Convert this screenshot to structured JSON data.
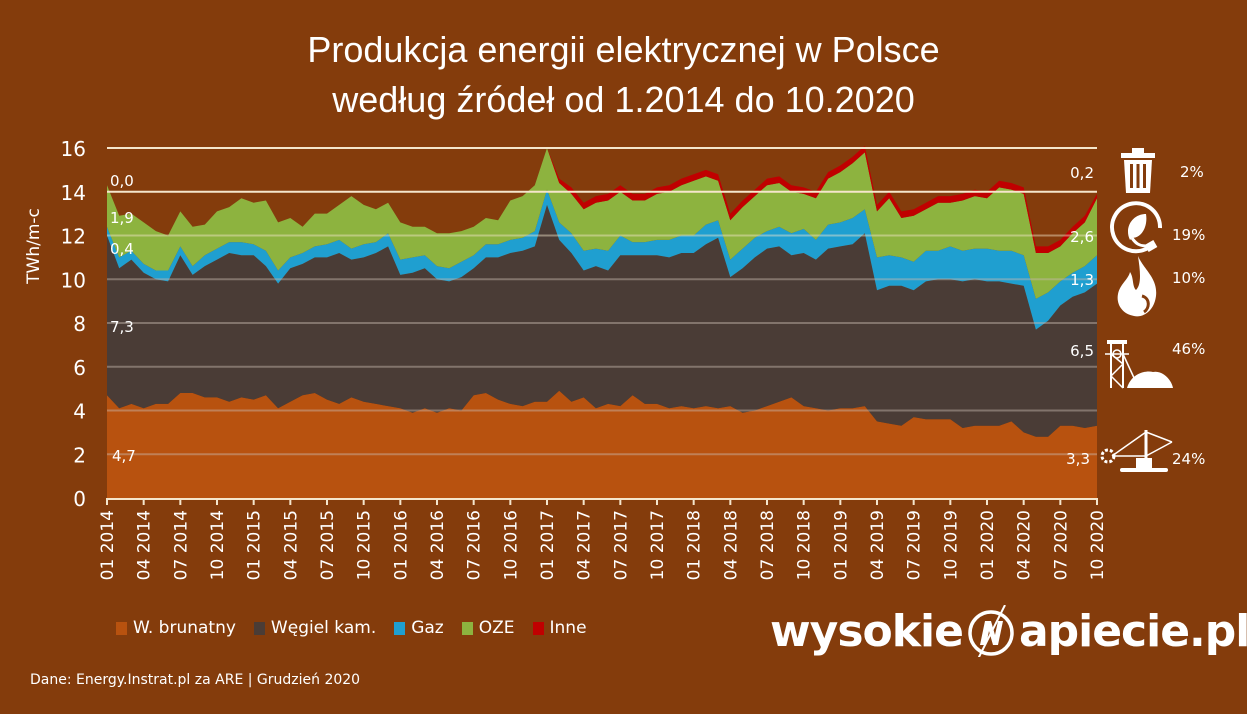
{
  "title": {
    "line1": "Produkcja energii elektrycznej w Polsce",
    "line2": "według źródeł od 1.2014 do 10.2020"
  },
  "axis": {
    "ylabel": "TWh/m-c",
    "yticks": [
      "0",
      "2",
      "4",
      "6",
      "8",
      "10",
      "12",
      "14",
      "16"
    ],
    "xticks": [
      "01 2014",
      "04 2014",
      "07 2014",
      "10 2014",
      "01 2015",
      "04 2015",
      "07 2015",
      "10 2015",
      "01 2016",
      "04 2016",
      "07 2016",
      "10 2016",
      "01 2017",
      "04 2017",
      "07 2017",
      "10 2017",
      "01 2018",
      "04 2018",
      "07 2018",
      "10 2018",
      "01 2019",
      "04 2019",
      "07 2019",
      "10 2019",
      "01 2020",
      "04 2020",
      "07 2020",
      "10 2020"
    ]
  },
  "annotations": {
    "start": {
      "inne": "0,0",
      "oze": "1,9",
      "gaz": "0,4",
      "wegiel": "7,3",
      "brunatny": "4,7"
    },
    "end": {
      "inne": "0,2",
      "oze": "2,6",
      "gaz": "1,3",
      "wegiel": "6,5",
      "brunatny": "3,3"
    }
  },
  "shares": [
    {
      "icon": "trash-icon",
      "label": "2%"
    },
    {
      "icon": "leaf-plug-icon",
      "label": "19%"
    },
    {
      "icon": "flame-icon",
      "label": "10%"
    },
    {
      "icon": "mine-tower-icon",
      "label": "46%"
    },
    {
      "icon": "excavator-icon",
      "label": "24%"
    }
  ],
  "legend": [
    {
      "label": "W. brunatny",
      "color": "#b8520f"
    },
    {
      "label": "Węgiel kam.",
      "color": "#4a3c36"
    },
    {
      "label": "Gaz",
      "color": "#1f9fd0"
    },
    {
      "label": "OZE",
      "color": "#8db33f"
    },
    {
      "label": "Inne",
      "color": "#c00000"
    }
  ],
  "source": "Dane: Energy.Instrat.pl za ARE  |  Grudzień 2020",
  "logo": {
    "left": "wysokie",
    "right": "apiecie.pl"
  },
  "colors": {
    "background": "#843c0c",
    "brunatny": "#b8520f",
    "wegiel": "#4a3c36",
    "gaz": "#1f9fd0",
    "oze": "#8db33f",
    "inne": "#c00000",
    "grid_light": "#f5e6cc"
  },
  "chart_data": {
    "type": "area",
    "stacked": true,
    "title": "Produkcja energii elektrycznej w Polsce według źródeł od 1.2014 do 10.2020",
    "xlabel": "",
    "ylabel": "TWh/m-c",
    "ylim": [
      0,
      16
    ],
    "grid": true,
    "legend_position": "bottom",
    "x_start": "01 2014",
    "x_end": "10 2020",
    "x_count": 82,
    "series": [
      {
        "name": "W. brunatny",
        "values": [
          4.7,
          4.1,
          4.3,
          4.1,
          4.3,
          4.3,
          4.8,
          4.8,
          4.6,
          4.6,
          4.4,
          4.6,
          4.5,
          4.7,
          4.1,
          4.4,
          4.7,
          4.8,
          4.5,
          4.3,
          4.6,
          4.4,
          4.3,
          4.2,
          4.1,
          3.9,
          4.1,
          3.9,
          4.1,
          4.0,
          4.7,
          4.8,
          4.5,
          4.3,
          4.2,
          4.4,
          4.4,
          4.9,
          4.4,
          4.6,
          4.1,
          4.3,
          4.2,
          4.7,
          4.3,
          4.3,
          4.1,
          4.2,
          4.1,
          4.2,
          4.1,
          4.2,
          3.9,
          4.0,
          4.2,
          4.4,
          4.6,
          4.2,
          4.1,
          4.0,
          4.1,
          4.1,
          4.2,
          3.5,
          3.4,
          3.3,
          3.7,
          3.6,
          3.6,
          3.6,
          3.2,
          3.3,
          3.3,
          3.3,
          3.5,
          3.0,
          2.8,
          2.8,
          3.3,
          3.3,
          3.2,
          3.3
        ]
      },
      {
        "name": "Węgiel kam.",
        "values": [
          7.3,
          6.4,
          6.6,
          6.2,
          5.7,
          5.6,
          6.3,
          5.4,
          6.0,
          6.3,
          6.8,
          6.5,
          6.6,
          5.9,
          5.7,
          6.1,
          6.0,
          6.2,
          6.5,
          6.9,
          6.3,
          6.6,
          6.9,
          7.3,
          6.1,
          6.4,
          6.4,
          6.1,
          5.8,
          6.1,
          5.8,
          6.2,
          6.5,
          6.9,
          7.1,
          7.1,
          9.0,
          6.9,
          6.8,
          5.8,
          6.5,
          6.1,
          6.9,
          6.4,
          6.8,
          6.8,
          6.9,
          7.0,
          7.1,
          7.4,
          7.8,
          5.9,
          6.6,
          7.0,
          7.2,
          7.1,
          6.5,
          7.0,
          6.8,
          7.4,
          7.4,
          7.5,
          7.9,
          6.0,
          6.3,
          6.4,
          5.8,
          6.3,
          6.4,
          6.4,
          6.7,
          6.7,
          6.6,
          6.6,
          6.3,
          6.7,
          4.9,
          5.3,
          5.5,
          5.9,
          6.2,
          6.5
        ]
      },
      {
        "name": "Gaz",
        "values": [
          0.4,
          0.5,
          0.4,
          0.4,
          0.4,
          0.5,
          0.4,
          0.4,
          0.5,
          0.5,
          0.5,
          0.6,
          0.5,
          0.7,
          0.6,
          0.5,
          0.5,
          0.5,
          0.6,
          0.6,
          0.5,
          0.6,
          0.5,
          0.6,
          0.7,
          0.7,
          0.6,
          0.6,
          0.6,
          0.7,
          0.6,
          0.6,
          0.6,
          0.6,
          0.6,
          0.7,
          0.7,
          0.8,
          0.9,
          0.9,
          0.8,
          0.9,
          0.9,
          0.6,
          0.6,
          0.7,
          0.8,
          0.8,
          0.8,
          0.9,
          0.8,
          0.8,
          0.9,
          0.9,
          0.8,
          0.9,
          1.0,
          1.1,
          0.9,
          1.1,
          1.1,
          1.2,
          1.1,
          1.5,
          1.4,
          1.3,
          1.3,
          1.4,
          1.3,
          1.5,
          1.4,
          1.4,
          1.5,
          1.4,
          1.5,
          1.4,
          1.4,
          1.3,
          1.1,
          1.1,
          1.2,
          1.3
        ]
      },
      {
        "name": "OZE",
        "values": [
          1.9,
          1.9,
          1.7,
          1.9,
          1.8,
          1.6,
          1.6,
          1.8,
          1.4,
          1.7,
          1.6,
          2.0,
          1.9,
          2.3,
          2.2,
          1.8,
          1.2,
          1.5,
          1.4,
          1.6,
          2.4,
          1.8,
          1.5,
          1.4,
          1.7,
          1.4,
          1.3,
          1.5,
          1.6,
          1.4,
          1.3,
          1.2,
          1.1,
          1.8,
          1.9,
          2.1,
          1.9,
          1.8,
          1.8,
          1.9,
          2.1,
          2.3,
          2.0,
          1.9,
          1.9,
          2.1,
          2.2,
          2.3,
          2.5,
          2.2,
          1.8,
          1.8,
          1.9,
          1.9,
          2.1,
          2.0,
          1.9,
          1.6,
          1.9,
          2.1,
          2.3,
          2.5,
          2.6,
          2.1,
          2.6,
          1.8,
          2.1,
          1.9,
          2.2,
          2.0,
          2.3,
          2.4,
          2.3,
          2.9,
          2.8,
          2.8,
          2.1,
          1.8,
          1.6,
          1.8,
          2.0,
          2.6
        ]
      },
      {
        "name": "Inne",
        "values": [
          0.0,
          0.0,
          0.0,
          0.0,
          0.0,
          0.0,
          0.0,
          0.0,
          0.0,
          0.0,
          0.0,
          0.0,
          0.0,
          0.0,
          0.0,
          0.0,
          0.0,
          0.0,
          0.0,
          0.0,
          0.0,
          0.0,
          0.0,
          0.0,
          0.0,
          0.0,
          0.0,
          0.0,
          0.0,
          0.0,
          0.0,
          0.0,
          0.0,
          0.0,
          0.0,
          0.0,
          0.0,
          0.2,
          0.3,
          0.3,
          0.3,
          0.3,
          0.3,
          0.3,
          0.3,
          0.3,
          0.3,
          0.3,
          0.3,
          0.3,
          0.3,
          0.3,
          0.3,
          0.3,
          0.3,
          0.3,
          0.3,
          0.3,
          0.3,
          0.3,
          0.3,
          0.3,
          0.3,
          0.3,
          0.3,
          0.3,
          0.3,
          0.3,
          0.3,
          0.3,
          0.3,
          0.3,
          0.3,
          0.3,
          0.3,
          0.3,
          0.3,
          0.3,
          0.3,
          0.3,
          0.3,
          0.2
        ]
      }
    ],
    "annotations": [
      "0,0",
      "1,9",
      "0,4",
      "7,3",
      "4,7",
      "0,2",
      "2,6",
      "1,3",
      "6,5",
      "3,3"
    ],
    "side_shares": {
      "Inne": "2%",
      "OZE": "19%",
      "Gaz": "10%",
      "Węgiel kam.": "46%",
      "W. brunatny": "24%"
    }
  }
}
